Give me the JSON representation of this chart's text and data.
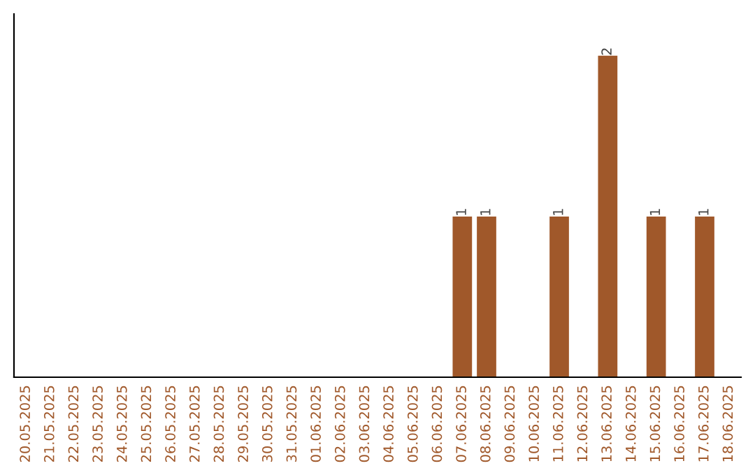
{
  "chart_data": {
    "type": "bar",
    "categories": [
      "20.05.2025",
      "21.05.2025",
      "22.05.2025",
      "23.05.2025",
      "24.05.2025",
      "25.05.2025",
      "26.05.2025",
      "27.05.2025",
      "28.05.2025",
      "29.05.2025",
      "30.05.2025",
      "31.05.2025",
      "01.06.2025",
      "02.06.2025",
      "03.06.2025",
      "04.06.2025",
      "05.06.2025",
      "06.06.2025",
      "07.06.2025",
      "08.06.2025",
      "09.06.2025",
      "10.06.2025",
      "11.06.2025",
      "12.06.2025",
      "13.06.2025",
      "14.06.2025",
      "15.06.2025",
      "16.06.2025",
      "17.06.2025",
      "18.06.2025"
    ],
    "values": [
      null,
      null,
      null,
      null,
      null,
      null,
      null,
      null,
      null,
      null,
      null,
      null,
      null,
      null,
      null,
      null,
      null,
      null,
      1,
      1,
      null,
      null,
      1,
      null,
      2,
      null,
      1,
      null,
      1,
      null
    ],
    "data_labels": true,
    "color": "#a0582a",
    "tick_labels": "x",
    "grid": false
  }
}
